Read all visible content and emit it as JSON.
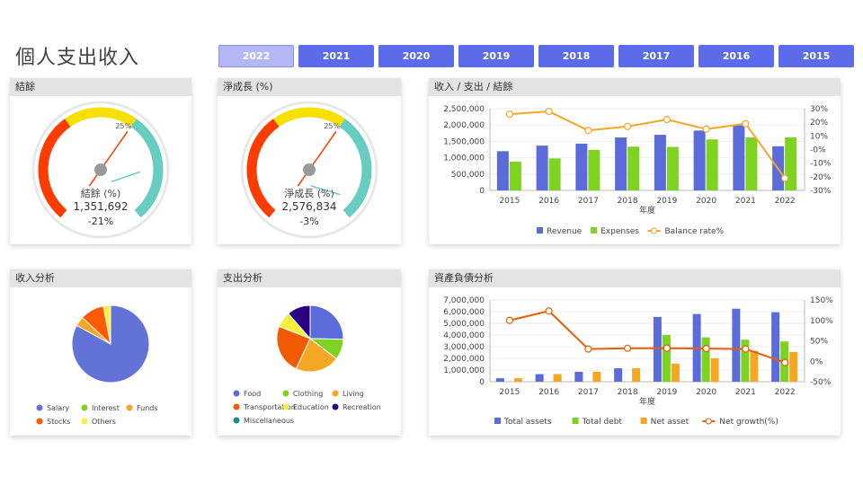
{
  "app_title": "個人支出收入",
  "years": [
    "2022",
    "2021",
    "2020",
    "2019",
    "2018",
    "2017",
    "2016",
    "2015"
  ],
  "active_year": "2022",
  "colors": {
    "button": "#5b6bea",
    "active_button": "#b3b8f5",
    "red": "#ff3c00",
    "yellow": "#f7df00",
    "teal": "#66cdc0",
    "blue": "#5b6bd9",
    "green": "#7ed321",
    "orange": "#f5a623",
    "line_orange": "#e85d04"
  },
  "gauge1": {
    "header": "結餘",
    "label": "結餘 (%)",
    "value": "1,351,692",
    "percent": "-21%",
    "tick_label": "25%",
    "needle_pct": -21
  },
  "gauge2": {
    "header": "淨成長 (%)",
    "label": "淨成長 (%)",
    "value": "2,576,834",
    "percent": "-3%",
    "tick_label": "25%",
    "needle_pct": -3
  },
  "income_pie": {
    "header": "收入分析",
    "legend": [
      "Salary",
      "Interest",
      "Funds",
      "Stocks",
      "Others"
    ]
  },
  "expense_pie": {
    "header": "支出分析",
    "legend": [
      "Food",
      "Clothing",
      "Living",
      "Transportation",
      "Education",
      "Recreation",
      "Miscellaneous"
    ]
  },
  "chart_data": [
    {
      "type": "pie",
      "categories": [
        "Salary",
        "Interest",
        "Funds",
        "Stocks",
        "Others"
      ],
      "values": [
        83,
        0,
        4,
        10,
        3
      ]
    },
    {
      "type": "pie",
      "categories": [
        "Food",
        "Clothing",
        "Living",
        "Transportation",
        "Education",
        "Recreation",
        "Miscellaneous"
      ],
      "values": [
        20,
        8,
        17,
        19,
        6,
        9,
        0
      ]
    },
    {
      "type": "bar",
      "title": "收入 / 支出 / 結餘",
      "xlabel": "年度",
      "categories": [
        "2015",
        "2016",
        "2017",
        "2018",
        "2019",
        "2020",
        "2021",
        "2022"
      ],
      "ylim": [
        0,
        2500000
      ],
      "y2lim": [
        -30,
        30
      ],
      "yticks": [
        "0",
        "500,000",
        "1,000,000",
        "1,500,000",
        "2,000,000",
        "2,500,000"
      ],
      "y2ticks": [
        "-30%",
        "-20%",
        "-10%",
        "-0%",
        "10%",
        "20%",
        "30%"
      ],
      "series": [
        {
          "name": "Revenue",
          "kind": "bar",
          "values": [
            1200000,
            1370000,
            1430000,
            1620000,
            1700000,
            1830000,
            1990000,
            1350000
          ]
        },
        {
          "name": "Expenses",
          "kind": "bar",
          "values": [
            880000,
            980000,
            1240000,
            1340000,
            1330000,
            1560000,
            1620000,
            1620000
          ]
        },
        {
          "name": "Balance rate%",
          "kind": "line",
          "axis": "right",
          "values": [
            26,
            28,
            14,
            17,
            22,
            15,
            19,
            -21
          ]
        }
      ]
    },
    {
      "type": "bar",
      "title": "資產負債分析",
      "xlabel": "年度",
      "categories": [
        "2015",
        "2016",
        "2017",
        "2018",
        "2019",
        "2020",
        "2021",
        "2022"
      ],
      "ylim": [
        0,
        7000000
      ],
      "y2lim": [
        -50,
        150
      ],
      "yticks": [
        "0",
        "1,000,000",
        "2,000,000",
        "3,000,000",
        "4,000,000",
        "5,000,000",
        "6,000,000",
        "7,000,000"
      ],
      "y2ticks": [
        "-50%",
        "0%",
        "50%",
        "100%",
        "150%"
      ],
      "series": [
        {
          "name": "Total assets",
          "kind": "bar",
          "values": [
            300000,
            650000,
            850000,
            1150000,
            5550000,
            5800000,
            6250000,
            5950000
          ]
        },
        {
          "name": "Total debt",
          "kind": "bar",
          "values": [
            0,
            0,
            0,
            0,
            4000000,
            3800000,
            3600000,
            3450000
          ]
        },
        {
          "name": "Net asset",
          "kind": "bar",
          "values": [
            300000,
            650000,
            850000,
            1150000,
            1550000,
            2000000,
            2650000,
            2550000
          ]
        },
        {
          "name": "Net growth(%)",
          "kind": "line",
          "axis": "right",
          "values": [
            100,
            123,
            30,
            32,
            32,
            31,
            30,
            -3
          ]
        }
      ]
    }
  ]
}
